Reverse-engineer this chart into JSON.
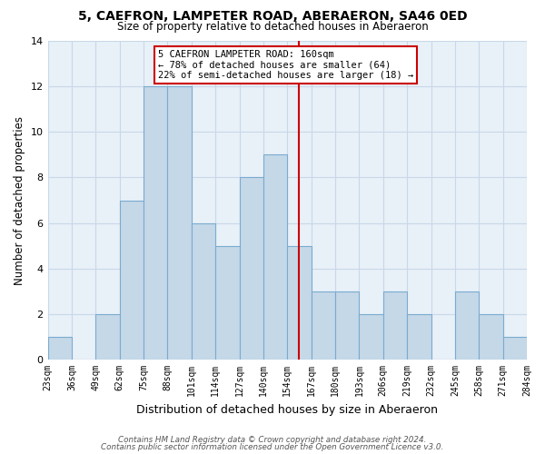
{
  "title": "5, CAEFRON, LAMPETER ROAD, ABERAERON, SA46 0ED",
  "subtitle": "Size of property relative to detached houses in Aberaeron",
  "xlabel": "Distribution of detached houses by size in Aberaeron",
  "ylabel": "Number of detached properties",
  "bar_labels": [
    "23sqm",
    "36sqm",
    "49sqm",
    "62sqm",
    "75sqm",
    "88sqm",
    "101sqm",
    "114sqm",
    "127sqm",
    "140sqm",
    "154sqm",
    "167sqm",
    "180sqm",
    "193sqm",
    "206sqm",
    "219sqm",
    "232sqm",
    "245sqm",
    "258sqm",
    "271sqm",
    "284sqm"
  ],
  "bar_values": [
    1,
    0,
    2,
    7,
    12,
    12,
    6,
    5,
    8,
    9,
    5,
    3,
    3,
    2,
    3,
    2,
    0,
    3,
    2,
    1
  ],
  "bar_color": "#c5d8e8",
  "bar_edge_color": "#7aabcf",
  "ylim": [
    0,
    14
  ],
  "yticks": [
    0,
    2,
    4,
    6,
    8,
    10,
    12,
    14
  ],
  "property_line_color": "#cc0000",
  "annotation_title": "5 CAEFRON LAMPETER ROAD: 160sqm",
  "annotation_line1": "← 78% of detached houses are smaller (64)",
  "annotation_line2": "22% of semi-detached houses are larger (18) →",
  "annotation_box_color": "#ffffff",
  "annotation_box_edge_color": "#cc0000",
  "footer_line1": "Contains HM Land Registry data © Crown copyright and database right 2024.",
  "footer_line2": "Contains public sector information licensed under the Open Government Licence v3.0.",
  "background_color": "#ffffff",
  "grid_color": "#c8d8e8"
}
